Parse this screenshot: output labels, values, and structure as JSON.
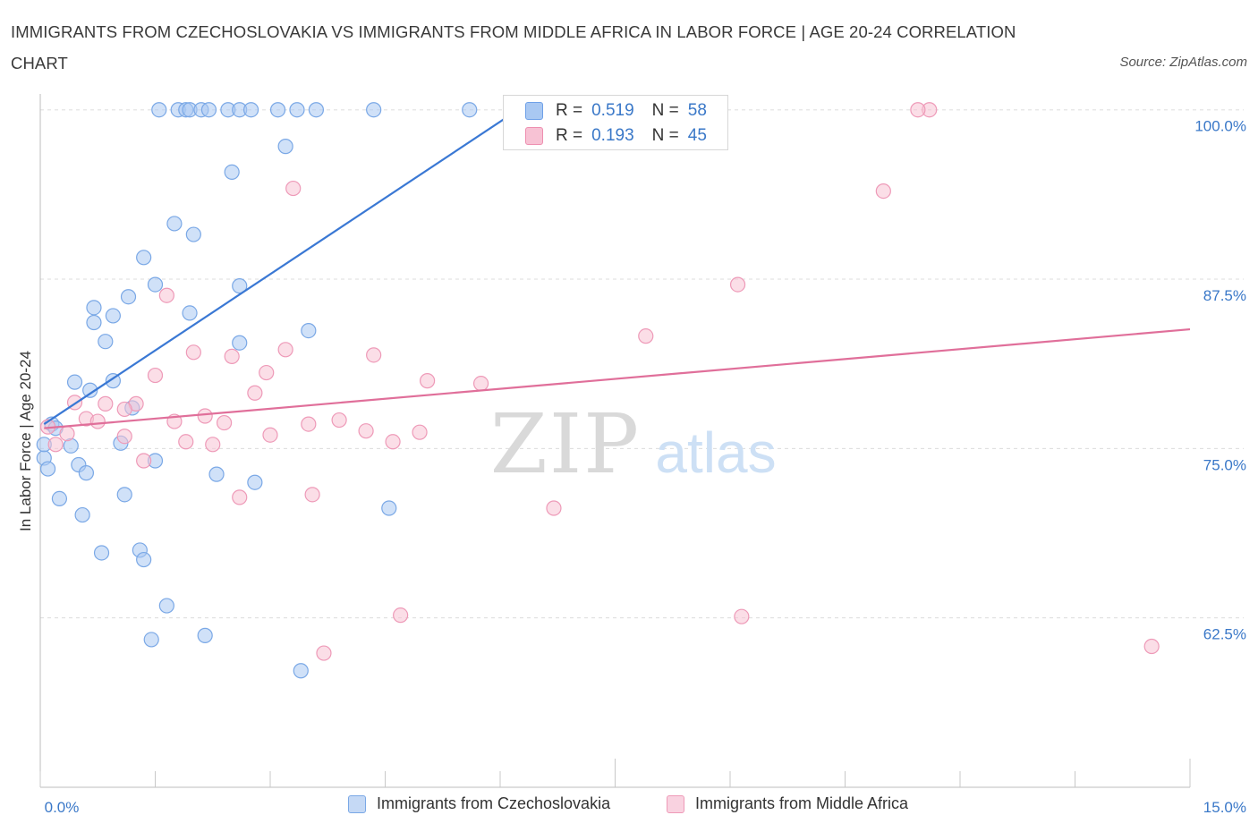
{
  "title": "IMMIGRANTS FROM CZECHOSLOVAKIA VS IMMIGRANTS FROM MIDDLE AFRICA IN LABOR FORCE | AGE 20-24 CORRELATION CHART",
  "source": "Source: ZipAtlas.com",
  "watermark": {
    "zip": "ZIP",
    "atlas": "atlas"
  },
  "stats": {
    "r_label": "R =",
    "n_label": "N =",
    "rows": [
      {
        "r": "0.519",
        "n": "58",
        "color": "#6fa1e8",
        "fill": "#a9c8f2"
      },
      {
        "r": "0.193",
        "n": "45",
        "color": "#ee8fb0",
        "fill": "#f7c2d4"
      }
    ]
  },
  "legend": {
    "czech": "Immigrants from Czechoslovakia",
    "africa": "Immigrants from Middle Africa"
  },
  "chart_data": {
    "type": "scatter",
    "title": "IMMIGRANTS FROM CZECHOSLOVAKIA VS IMMIGRANTS FROM MIDDLE AFRICA IN LABOR FORCE | AGE 20-24 CORRELATION CHART",
    "xlabel": "",
    "ylabel": "In Labor Force | Age 20-24",
    "xlim": [
      0,
      15
    ],
    "ylim": [
      50,
      101.5
    ],
    "x_tick_labels": [
      "0.0%",
      "15.0%"
    ],
    "y_ticks": [
      62.5,
      75.0,
      87.5,
      100.0
    ],
    "y_tick_labels": [
      "62.5%",
      "75.0%",
      "87.5%",
      "100.0%"
    ],
    "grid": true,
    "legend_position": "bottom",
    "series": [
      {
        "name": "Immigrants from Czechoslovakia",
        "color": "#3a78d4",
        "point_fill": "#a9c8f2",
        "point_stroke": "#7aa8e6",
        "trendline": {
          "x": [
            0.05,
            6.5
          ],
          "y": [
            76.8,
            101.0
          ]
        },
        "points": [
          [
            1.55,
            100.0
          ],
          [
            1.8,
            100.0
          ],
          [
            1.9,
            100.0
          ],
          [
            1.95,
            100.0
          ],
          [
            2.1,
            100.0
          ],
          [
            2.2,
            100.0
          ],
          [
            2.45,
            100.0
          ],
          [
            2.6,
            100.0
          ],
          [
            2.75,
            100.0
          ],
          [
            3.1,
            100.0
          ],
          [
            3.6,
            100.0
          ],
          [
            4.35,
            100.0
          ],
          [
            5.6,
            100.0
          ],
          [
            7.1,
            100.0
          ],
          [
            3.2,
            97.3
          ],
          [
            2.5,
            95.4
          ],
          [
            1.75,
            91.6
          ],
          [
            2.0,
            90.8
          ],
          [
            1.35,
            89.1
          ],
          [
            2.6,
            87.0
          ],
          [
            1.5,
            87.1
          ],
          [
            1.15,
            86.2
          ],
          [
            0.7,
            85.4
          ],
          [
            0.95,
            84.8
          ],
          [
            1.95,
            85.0
          ],
          [
            0.7,
            84.3
          ],
          [
            0.85,
            82.9
          ],
          [
            2.6,
            82.8
          ],
          [
            3.5,
            83.7
          ],
          [
            0.45,
            79.9
          ],
          [
            0.95,
            80.0
          ],
          [
            0.65,
            79.3
          ],
          [
            1.2,
            78.0
          ],
          [
            0.15,
            76.8
          ],
          [
            0.2,
            76.5
          ],
          [
            0.4,
            75.2
          ],
          [
            1.05,
            75.4
          ],
          [
            1.5,
            74.1
          ],
          [
            0.05,
            74.3
          ],
          [
            0.5,
            73.8
          ],
          [
            0.6,
            73.2
          ],
          [
            2.3,
            73.1
          ],
          [
            2.8,
            72.5
          ],
          [
            0.25,
            71.3
          ],
          [
            1.1,
            71.6
          ],
          [
            0.55,
            70.1
          ],
          [
            4.55,
            70.6
          ],
          [
            0.8,
            67.3
          ],
          [
            1.3,
            67.5
          ],
          [
            1.35,
            66.8
          ],
          [
            1.65,
            63.4
          ],
          [
            1.45,
            60.9
          ],
          [
            2.15,
            61.2
          ],
          [
            3.4,
            58.6
          ],
          [
            0.1,
            73.5
          ],
          [
            0.05,
            75.3
          ],
          [
            3.35,
            100.0
          ],
          [
            6.3,
            100.0
          ]
        ]
      },
      {
        "name": "Immigrants from Middle Africa",
        "color": "#e06f9a",
        "point_fill": "#f7c2d4",
        "point_stroke": "#ee9ab8",
        "trendline": {
          "x": [
            0.05,
            15.0
          ],
          "y": [
            76.5,
            83.8
          ]
        },
        "points": [
          [
            11.6,
            100.0
          ],
          [
            11.45,
            100.0
          ],
          [
            3.3,
            94.2
          ],
          [
            11.0,
            94.0
          ],
          [
            9.1,
            87.1
          ],
          [
            1.65,
            86.3
          ],
          [
            7.9,
            83.3
          ],
          [
            2.0,
            82.1
          ],
          [
            2.5,
            81.8
          ],
          [
            3.2,
            82.3
          ],
          [
            4.35,
            81.9
          ],
          [
            2.95,
            80.6
          ],
          [
            1.5,
            80.4
          ],
          [
            5.05,
            80.0
          ],
          [
            5.75,
            79.8
          ],
          [
            2.8,
            79.1
          ],
          [
            0.45,
            78.4
          ],
          [
            0.85,
            78.3
          ],
          [
            1.25,
            78.3
          ],
          [
            0.1,
            76.6
          ],
          [
            0.6,
            77.2
          ],
          [
            0.75,
            77.0
          ],
          [
            1.1,
            77.9
          ],
          [
            1.75,
            77.0
          ],
          [
            2.15,
            77.4
          ],
          [
            2.4,
            76.9
          ],
          [
            3.5,
            76.8
          ],
          [
            3.9,
            77.1
          ],
          [
            0.35,
            76.1
          ],
          [
            0.2,
            75.3
          ],
          [
            4.25,
            76.3
          ],
          [
            4.95,
            76.2
          ],
          [
            3.0,
            76.0
          ],
          [
            1.1,
            75.9
          ],
          [
            1.9,
            75.5
          ],
          [
            2.25,
            75.3
          ],
          [
            4.6,
            75.5
          ],
          [
            1.35,
            74.1
          ],
          [
            2.6,
            71.4
          ],
          [
            3.55,
            71.6
          ],
          [
            6.7,
            70.6
          ],
          [
            4.7,
            62.7
          ],
          [
            9.15,
            62.6
          ],
          [
            3.7,
            59.9
          ],
          [
            14.5,
            60.4
          ]
        ]
      }
    ]
  }
}
